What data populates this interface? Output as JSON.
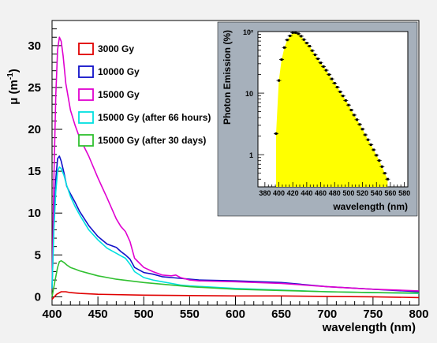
{
  "chart_data": [
    {
      "type": "line",
      "xlabel": "wavelength (nm)",
      "ylabel": "μ (m",
      "ylabel_sup": "-1",
      "ylabel_close": ")",
      "xlim": [
        400,
        800
      ],
      "ylim": [
        -1,
        33
      ],
      "xticks": [
        400,
        450,
        500,
        550,
        600,
        650,
        700,
        750,
        800
      ],
      "yticks": [
        0,
        5,
        10,
        15,
        20,
        25,
        30
      ],
      "grid": false,
      "legend_position": "top-left",
      "series": [
        {
          "name": "3000 Gy",
          "color": "#e00000",
          "x": [
            400,
            405,
            410,
            415,
            420,
            430,
            450,
            500,
            550,
            600,
            650,
            700,
            750,
            800
          ],
          "y": [
            -0.3,
            0.3,
            0.6,
            0.6,
            0.5,
            0.4,
            0.3,
            0.2,
            0.15,
            0.1,
            0.1,
            0.05,
            0.0,
            -0.1
          ]
        },
        {
          "name": "10000 Gy",
          "color": "#1010c8",
          "x": [
            400,
            402,
            404,
            406,
            408,
            410,
            413,
            416,
            420,
            425,
            430,
            440,
            450,
            460,
            470,
            475,
            480,
            485,
            490,
            500,
            510,
            520,
            530,
            540,
            550,
            560,
            600,
            650,
            700,
            750,
            800
          ],
          "y": [
            1,
            9,
            14,
            16.5,
            16.8,
            16.2,
            14.8,
            13.2,
            12.3,
            11.3,
            10.2,
            8.5,
            7.2,
            6.3,
            5.9,
            5.4,
            5.0,
            4.5,
            3.5,
            2.9,
            2.7,
            2.4,
            2.3,
            2.2,
            2.1,
            2.0,
            1.9,
            1.7,
            1.2,
            0.9,
            0.6
          ]
        },
        {
          "name": "15000 Gy",
          "color": "#e000d0",
          "x": [
            400,
            402,
            404,
            406,
            408,
            410,
            412,
            415,
            420,
            425,
            430,
            440,
            450,
            460,
            470,
            475,
            480,
            485,
            490,
            500,
            510,
            520,
            530,
            535,
            540,
            550,
            560,
            600,
            650,
            700,
            750,
            800
          ],
          "y": [
            1,
            14,
            24,
            29.5,
            31,
            30.5,
            28.8,
            25.5,
            22.3,
            20.5,
            19,
            16.8,
            14.2,
            11.8,
            9.3,
            8.4,
            7.8,
            6.6,
            4.6,
            3.5,
            3.0,
            2.6,
            2.5,
            2.6,
            2.3,
            2.0,
            1.9,
            1.8,
            1.6,
            1.2,
            0.9,
            0.7
          ]
        },
        {
          "name": "15000 Gy (after 66 hours)",
          "color": "#00e0e0",
          "x": [
            400,
            402,
            404,
            406,
            408,
            410,
            413,
            416,
            420,
            425,
            430,
            440,
            450,
            460,
            470,
            475,
            480,
            485,
            490,
            500,
            510,
            520,
            530,
            540,
            550,
            600,
            650,
            700,
            750,
            800
          ],
          "y": [
            1,
            8,
            12.5,
            15,
            15.5,
            15.3,
            14.5,
            13.3,
            12.0,
            10.8,
            9.8,
            8.0,
            6.8,
            5.8,
            5.2,
            4.9,
            4.6,
            3.9,
            3.0,
            2.3,
            2.0,
            1.8,
            1.6,
            1.4,
            1.3,
            1.0,
            0.8,
            0.6,
            0.5,
            0.4
          ]
        },
        {
          "name": "15000 Gy (after 30 days)",
          "color": "#30c030",
          "x": [
            400,
            403,
            406,
            408,
            410,
            413,
            416,
            420,
            425,
            430,
            440,
            450,
            470,
            500,
            550,
            600,
            650,
            700,
            750,
            800
          ],
          "y": [
            0,
            1.8,
            3.5,
            4.2,
            4.3,
            4.1,
            3.8,
            3.5,
            3.3,
            3.1,
            2.8,
            2.5,
            2.1,
            1.7,
            1.2,
            0.9,
            0.75,
            0.6,
            0.5,
            0.45
          ]
        }
      ]
    },
    {
      "type": "area",
      "xlabel": "wavelength (nm)",
      "ylabel": "Photon Emission (%)",
      "xlim": [
        370,
        585
      ],
      "ylim": [
        0.3,
        100
      ],
      "yscale": "log",
      "xticks": [
        380,
        400,
        420,
        440,
        460,
        480,
        500,
        520,
        540,
        560,
        580
      ],
      "ytick_labels": [
        "1",
        "10",
        "10²"
      ],
      "ytick_values": [
        1,
        10,
        100
      ],
      "fill_color": "#ffff00",
      "marker_color": "#000000",
      "x": [
        396,
        400,
        404,
        408,
        412,
        416,
        420,
        424,
        428,
        432,
        436,
        440,
        444,
        448,
        452,
        456,
        460,
        464,
        468,
        472,
        476,
        480,
        484,
        488,
        492,
        496,
        500,
        504,
        508,
        512,
        516,
        520,
        524,
        528,
        532,
        536,
        540,
        544,
        548,
        552,
        556
      ],
      "y": [
        2.2,
        16,
        35,
        55,
        73,
        85,
        96,
        96,
        92,
        84,
        74,
        65,
        58,
        49,
        42,
        36,
        31,
        27,
        23.5,
        20,
        17,
        14.5,
        12.5,
        10.5,
        9,
        7.6,
        6.4,
        5.3,
        4.4,
        3.7,
        3.1,
        2.6,
        2.1,
        1.75,
        1.45,
        1.2,
        0.98,
        0.8,
        0.64,
        0.5,
        0.4
      ]
    }
  ]
}
